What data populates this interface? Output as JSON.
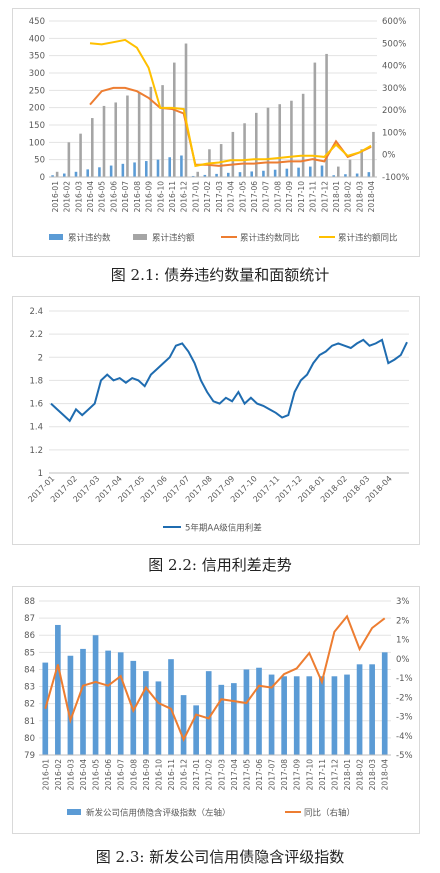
{
  "captions": [
    "图 2.1:  债券违约数量和面额统计",
    "图 2.2:  信用利差走势",
    "图 2.3:  新发公司信用债隐含评级指数"
  ],
  "chart_data": [
    {
      "type": "bar",
      "categories": [
        "2016-01",
        "2016-02",
        "2016-03",
        "2016-04",
        "2016-05",
        "2016-06",
        "2016-07",
        "2016-08",
        "2016-09",
        "2016-10",
        "2016-11",
        "2016-12",
        "2017-01",
        "2017-02",
        "2017-03",
        "2017-04",
        "2017-05",
        "2017-06",
        "2017-07",
        "2017-08",
        "2017-09",
        "2017-10",
        "2017-11",
        "2017-12",
        "2018-01",
        "2018-02",
        "2018-03",
        "2018-04"
      ],
      "left_ticks": [
        "0",
        "50",
        "100",
        "150",
        "200",
        "250",
        "300",
        "350",
        "400",
        "450"
      ],
      "right_ticks": [
        "-100%",
        "0%",
        "100%",
        "200%",
        "300%",
        "400%",
        "500%",
        "600%"
      ],
      "ylim_left": [
        0,
        450
      ],
      "ylim_right": [
        -100,
        600
      ],
      "series": [
        {
          "name": "累计违约数",
          "kind": "bar",
          "axis": "left",
          "color": "#5b9bd5",
          "values": [
            5,
            10,
            15,
            22,
            28,
            33,
            38,
            42,
            46,
            50,
            57,
            62,
            3,
            6,
            9,
            12,
            14,
            16,
            18,
            21,
            24,
            27,
            30,
            33,
            5,
            8,
            10,
            14
          ]
        },
        {
          "name": "累计违约额",
          "kind": "bar",
          "axis": "left",
          "color": "#a5a5a5",
          "values": [
            15,
            100,
            125,
            170,
            205,
            215,
            235,
            245,
            260,
            265,
            330,
            385,
            15,
            80,
            95,
            130,
            155,
            185,
            200,
            210,
            220,
            240,
            330,
            355,
            30,
            50,
            80,
            130
          ]
        },
        {
          "name": "累计违约数同比",
          "kind": "line",
          "axis": "right",
          "color": "#ed7d31",
          "values": [
            null,
            null,
            null,
            225,
            285,
            300,
            300,
            285,
            255,
            210,
            205,
            185,
            -45,
            -45,
            -50,
            -45,
            -40,
            -40,
            -35,
            -35,
            -30,
            -30,
            -20,
            -30,
            60,
            -10,
            10,
            35
          ]
        },
        {
          "name": "累计违约额同比",
          "kind": "line",
          "axis": "right",
          "color": "#ffc000",
          "values": [
            null,
            null,
            null,
            500,
            495,
            505,
            515,
            480,
            390,
            210,
            210,
            205,
            -50,
            -40,
            -35,
            -25,
            -25,
            -20,
            -20,
            -15,
            -10,
            -5,
            -5,
            -10,
            45,
            -5,
            10,
            40
          ]
        }
      ]
    },
    {
      "type": "line",
      "x_ticks": [
        "2017-01",
        "2017-02",
        "2017-03",
        "2017-04",
        "2017-05",
        "2017-06",
        "2017-07",
        "2017-08",
        "2017-09",
        "2017-10",
        "2017-11",
        "2017-12",
        "2018-01",
        "2018-02",
        "2018-03",
        "2018-04"
      ],
      "y_ticks": [
        "1",
        "1.2",
        "1.4",
        "1.6",
        "1.8",
        "2",
        "2.2",
        "2.4"
      ],
      "ylim": [
        1,
        2.4
      ],
      "series": [
        {
          "name": "5年期AA级信用利差",
          "color": "#1f6cb0",
          "values": [
            1.6,
            1.55,
            1.5,
            1.45,
            1.55,
            1.5,
            1.55,
            1.6,
            1.8,
            1.85,
            1.8,
            1.82,
            1.78,
            1.82,
            1.8,
            1.75,
            1.85,
            1.9,
            1.95,
            2.0,
            2.1,
            2.12,
            2.05,
            1.95,
            1.8,
            1.7,
            1.62,
            1.6,
            1.65,
            1.62,
            1.7,
            1.6,
            1.65,
            1.6,
            1.58,
            1.55,
            1.52,
            1.48,
            1.5,
            1.7,
            1.8,
            1.85,
            1.95,
            2.02,
            2.05,
            2.1,
            2.12,
            2.1,
            2.08,
            2.12,
            2.15,
            2.1,
            2.12,
            2.15,
            1.95,
            1.98,
            2.02,
            2.13
          ]
        }
      ]
    },
    {
      "type": "bar",
      "categories": [
        "2016-01",
        "2016-02",
        "2016-03",
        "2016-04",
        "2016-05",
        "2016-06",
        "2016-07",
        "2016-08",
        "2016-09",
        "2016-10",
        "2016-11",
        "2016-12",
        "2017-01",
        "2017-02",
        "2017-03",
        "2017-04",
        "2017-05",
        "2017-06",
        "2017-07",
        "2017-08",
        "2017-09",
        "2017-10",
        "2017-11",
        "2017-12",
        "2018-01",
        "2018-02",
        "2018-03",
        "2018-04"
      ],
      "left_ticks": [
        "79",
        "80",
        "81",
        "82",
        "83",
        "84",
        "85",
        "86",
        "87",
        "88"
      ],
      "right_ticks": [
        "-5%",
        "-4%",
        "-3%",
        "-2%",
        "-1%",
        "0%",
        "1%",
        "2%",
        "3%"
      ],
      "ylim_left": [
        79,
        88
      ],
      "ylim_right": [
        -5,
        3
      ],
      "series": [
        {
          "name": "新发公司信用债隐含评级指数（左轴）",
          "kind": "bar",
          "axis": "left",
          "color": "#5b9bd5",
          "values": [
            84.4,
            86.6,
            84.8,
            85.2,
            86.0,
            85.1,
            85.0,
            84.5,
            83.9,
            83.3,
            84.6,
            82.5,
            81.9,
            83.9,
            83.1,
            83.2,
            84.0,
            84.1,
            83.7,
            83.6,
            83.6,
            83.6,
            83.6,
            83.6,
            83.7,
            84.3,
            84.3,
            85.0
          ]
        },
        {
          "name": "同比（右轴）",
          "kind": "line",
          "axis": "right",
          "color": "#ed7d31",
          "values": [
            -2.6,
            -0.3,
            -3.2,
            -1.4,
            -1.2,
            -1.4,
            -0.9,
            -2.7,
            -1.5,
            -2.3,
            -2.6,
            -4.2,
            -2.9,
            -3.1,
            -2.1,
            -2.2,
            -2.3,
            -1.4,
            -1.5,
            -0.8,
            -0.5,
            0.3,
            -1.2,
            1.4,
            2.2,
            0.5,
            1.6,
            2.1
          ]
        }
      ]
    }
  ]
}
